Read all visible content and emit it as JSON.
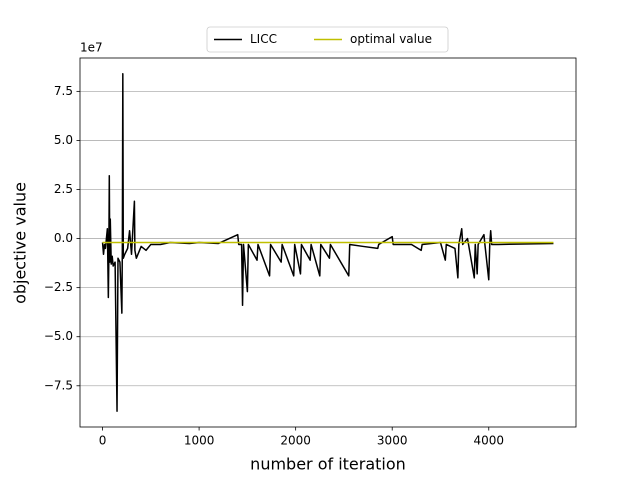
{
  "chart_data": {
    "type": "line",
    "x_label": "number of iteration",
    "y_label": "objective value",
    "y_offset_label": "1e7",
    "xlim": [
      -233.5,
      4903.5
    ],
    "ylim": [
      -9.6,
      9.2
    ],
    "xticks": [
      0,
      1000,
      2000,
      3000,
      4000
    ],
    "yticks": [
      {
        "value": -7.5,
        "label": "−7.5"
      },
      {
        "value": -5.0,
        "label": "−5.0"
      },
      {
        "value": -2.5,
        "label": "−2.5"
      },
      {
        "value": 0,
        "label": "0.0"
      },
      {
        "value": 2.5,
        "label": "2.5"
      },
      {
        "value": 5.0,
        "label": "5.0"
      },
      {
        "value": 7.5,
        "label": "7.5"
      }
    ],
    "grid": "y",
    "legend_position": "top",
    "series": [
      {
        "name": "LICC",
        "color": "#000000",
        "x": [
          0,
          10,
          20,
          30,
          50,
          60,
          65,
          70,
          75,
          80,
          90,
          100,
          110,
          130,
          150,
          160,
          180,
          200,
          205,
          210,
          215,
          230,
          260,
          280,
          300,
          330,
          335,
          350,
          400,
          450,
          500,
          600,
          700,
          900,
          1000,
          1200,
          1400,
          1410,
          1440,
          1450,
          1460,
          1500,
          1510,
          1600,
          1610,
          1730,
          1740,
          1850,
          1860,
          1980,
          1990,
          2050,
          2060,
          2150,
          2160,
          2250,
          2260,
          2350,
          2360,
          2550,
          2560,
          2700,
          2850,
          2860,
          3000,
          3010,
          3050,
          3200,
          3300,
          3310,
          3500,
          3550,
          3560,
          3650,
          3680,
          3690,
          3720,
          3730,
          3780,
          3850,
          3860,
          3880,
          3890,
          3950,
          3960,
          4000,
          4010,
          4020,
          4030,
          4100,
          4670
        ],
        "values": [
          -0.2,
          -0.8,
          -0.3,
          -0.5,
          0.5,
          -3.0,
          -1.0,
          3.2,
          -1.2,
          1.0,
          -1.3,
          -0.9,
          -1.4,
          -1.2,
          -8.8,
          -1.0,
          -1.2,
          -3.8,
          -0.5,
          8.4,
          -1.0,
          -0.8,
          -0.5,
          0.4,
          -0.8,
          1.9,
          -0.6,
          -1.0,
          -0.4,
          -0.6,
          -0.3,
          -0.3,
          -0.2,
          -0.25,
          -0.2,
          -0.25,
          0.2,
          -0.3,
          -0.3,
          -3.4,
          -0.3,
          -2.7,
          -0.3,
          -1.1,
          -0.3,
          -1.9,
          -0.3,
          -1.2,
          -0.3,
          -1.9,
          -0.3,
          -1.8,
          -0.3,
          -1.1,
          -0.3,
          -1.9,
          -0.3,
          -1.0,
          -0.3,
          -1.9,
          -0.3,
          -0.4,
          -0.5,
          -0.3,
          0.1,
          -0.3,
          -0.3,
          -0.3,
          -0.6,
          -0.3,
          -0.2,
          -1.1,
          -0.3,
          -0.5,
          -2.0,
          -0.3,
          0.5,
          -0.3,
          0.0,
          -2.0,
          -0.3,
          -1.8,
          -0.3,
          0.2,
          -0.3,
          -2.1,
          -0.3,
          0.4,
          -0.3,
          -0.3,
          -0.25
        ]
      },
      {
        "name": "optimal value",
        "color": "#bfbf00",
        "x": [
          0,
          4670
        ],
        "values": [
          -0.2,
          -0.2
        ]
      }
    ]
  }
}
